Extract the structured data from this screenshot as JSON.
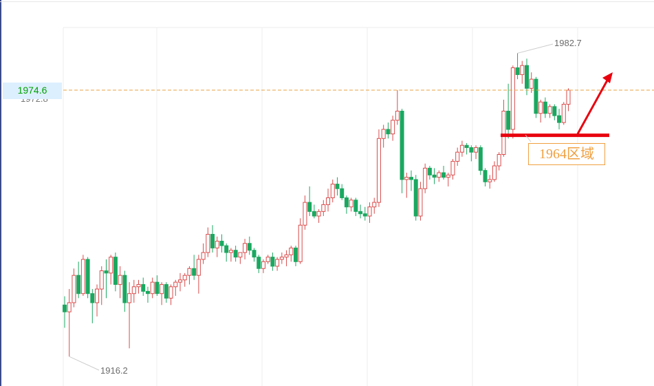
{
  "chart_data": {
    "type": "candlestick",
    "current_price": "1974.6",
    "ghost_price": "1972.8",
    "high_label": "1982.7",
    "low_label": "1916.2",
    "zone_label": "1964区域",
    "colors": {
      "up": "#d94a4a",
      "down": "#1aa860",
      "current_line": "#e8a040",
      "support": "#e8000e",
      "arrow": "#e8000e",
      "grid": "#ececec",
      "price_tag_bg": "#dcefff",
      "price_tag_text": "#00a000",
      "zone_text": "#f0a040"
    },
    "ohlc": [
      [
        1927.5,
        1929.4,
        1922.5,
        1926.0
      ],
      [
        1926.0,
        1931.0,
        1916.2,
        1928.0
      ],
      [
        1928.0,
        1935.5,
        1927.0,
        1934.0
      ],
      [
        1934.0,
        1937.0,
        1929.0,
        1930.0
      ],
      [
        1930.0,
        1938.5,
        1929.5,
        1937.5
      ],
      [
        1937.5,
        1938.0,
        1929.0,
        1930.0
      ],
      [
        1930.0,
        1931.0,
        1923.5,
        1928.0
      ],
      [
        1928.0,
        1932.0,
        1925.0,
        1931.0
      ],
      [
        1931.0,
        1936.0,
        1927.5,
        1935.0
      ],
      [
        1935.0,
        1937.5,
        1929.0,
        1934.5
      ],
      [
        1934.5,
        1938.5,
        1932.0,
        1938.0
      ],
      [
        1938.0,
        1939.0,
        1930.5,
        1932.0
      ],
      [
        1932.0,
        1936.0,
        1929.0,
        1934.0
      ],
      [
        1934.0,
        1935.0,
        1926.0,
        1928.0
      ],
      [
        1928.0,
        1932.5,
        1918.0,
        1930.0
      ],
      [
        1930.0,
        1933.0,
        1928.0,
        1931.5
      ],
      [
        1931.5,
        1933.0,
        1930.0,
        1932.0
      ],
      [
        1932.0,
        1933.5,
        1929.5,
        1930.5
      ],
      [
        1930.5,
        1931.5,
        1928.0,
        1930.0
      ],
      [
        1930.0,
        1933.5,
        1929.0,
        1932.5
      ],
      [
        1932.5,
        1934.0,
        1929.5,
        1930.0
      ],
      [
        1930.0,
        1932.5,
        1927.5,
        1932.0
      ],
      [
        1932.0,
        1932.5,
        1928.0,
        1929.0
      ],
      [
        1929.0,
        1932.0,
        1927.5,
        1931.5
      ],
      [
        1931.5,
        1933.0,
        1929.5,
        1932.5
      ],
      [
        1932.5,
        1934.5,
        1930.5,
        1933.0
      ],
      [
        1933.0,
        1934.5,
        1931.5,
        1934.0
      ],
      [
        1934.0,
        1936.0,
        1932.0,
        1935.5
      ],
      [
        1935.5,
        1938.5,
        1933.0,
        1934.0
      ],
      [
        1934.0,
        1938.5,
        1930.0,
        1937.5
      ],
      [
        1937.5,
        1941.0,
        1936.5,
        1939.0
      ],
      [
        1939.0,
        1944.5,
        1938.0,
        1943.0
      ],
      [
        1943.0,
        1945.0,
        1939.0,
        1940.0
      ],
      [
        1940.0,
        1942.5,
        1938.0,
        1941.5
      ],
      [
        1941.5,
        1943.0,
        1939.0,
        1940.5
      ],
      [
        1940.5,
        1941.0,
        1937.0,
        1939.0
      ],
      [
        1939.0,
        1940.0,
        1937.0,
        1939.5
      ],
      [
        1939.5,
        1940.5,
        1937.0,
        1938.0
      ],
      [
        1938.0,
        1939.0,
        1936.5,
        1939.0
      ],
      [
        1939.0,
        1942.0,
        1937.5,
        1941.0
      ],
      [
        1941.0,
        1942.5,
        1938.5,
        1939.5
      ],
      [
        1939.5,
        1940.0,
        1937.0,
        1938.0
      ],
      [
        1938.0,
        1938.5,
        1934.5,
        1935.5
      ],
      [
        1935.5,
        1937.5,
        1934.5,
        1937.0
      ],
      [
        1937.0,
        1938.5,
        1936.5,
        1938.0
      ],
      [
        1938.0,
        1939.0,
        1935.0,
        1936.0
      ],
      [
        1936.0,
        1938.0,
        1935.0,
        1937.5
      ],
      [
        1937.5,
        1939.0,
        1936.5,
        1938.0
      ],
      [
        1938.0,
        1939.5,
        1936.0,
        1938.5
      ],
      [
        1938.5,
        1940.5,
        1937.0,
        1940.0
      ],
      [
        1940.0,
        1940.5,
        1936.0,
        1937.0
      ],
      [
        1937.0,
        1946.5,
        1936.5,
        1945.0
      ],
      [
        1945.0,
        1951.5,
        1944.0,
        1950.0
      ],
      [
        1950.0,
        1953.5,
        1947.0,
        1948.0
      ],
      [
        1948.0,
        1949.5,
        1946.5,
        1947.0
      ],
      [
        1947.0,
        1948.5,
        1945.5,
        1948.0
      ],
      [
        1948.0,
        1950.5,
        1947.0,
        1949.5
      ],
      [
        1949.5,
        1953.0,
        1948.0,
        1951.0
      ],
      [
        1951.0,
        1955.0,
        1950.0,
        1954.0
      ],
      [
        1954.0,
        1955.5,
        1951.5,
        1953.0
      ],
      [
        1953.0,
        1954.0,
        1950.5,
        1951.0
      ],
      [
        1951.0,
        1951.5,
        1947.5,
        1949.0
      ],
      [
        1949.0,
        1951.0,
        1948.0,
        1950.5
      ],
      [
        1950.5,
        1951.0,
        1947.0,
        1948.0
      ],
      [
        1948.0,
        1949.5,
        1946.5,
        1947.5
      ],
      [
        1947.5,
        1949.0,
        1946.0,
        1947.0
      ],
      [
        1947.0,
        1950.0,
        1945.5,
        1949.0
      ],
      [
        1949.0,
        1951.0,
        1947.5,
        1950.0
      ],
      [
        1950.0,
        1966.0,
        1949.0,
        1964.0
      ],
      [
        1964.0,
        1967.0,
        1962.0,
        1966.0
      ],
      [
        1966.0,
        1967.5,
        1964.0,
        1965.0
      ],
      [
        1965.0,
        1969.0,
        1963.5,
        1968.0
      ],
      [
        1968.0,
        1974.6,
        1967.0,
        1970.0
      ],
      [
        1970.0,
        1970.5,
        1952.0,
        1955.0
      ],
      [
        1955.0,
        1956.5,
        1951.0,
        1955.5
      ],
      [
        1955.5,
        1957.0,
        1952.5,
        1955.0
      ],
      [
        1955.0,
        1956.0,
        1946.0,
        1947.0
      ],
      [
        1947.0,
        1954.5,
        1946.0,
        1953.0
      ],
      [
        1953.0,
        1958.5,
        1952.0,
        1957.5
      ],
      [
        1957.5,
        1958.0,
        1955.0,
        1956.0
      ],
      [
        1956.0,
        1957.5,
        1954.0,
        1955.5
      ],
      [
        1955.5,
        1957.0,
        1954.5,
        1956.5
      ],
      [
        1956.5,
        1958.0,
        1955.0,
        1955.5
      ],
      [
        1955.5,
        1956.5,
        1953.5,
        1956.0
      ],
      [
        1956.0,
        1959.5,
        1955.0,
        1959.0
      ],
      [
        1959.0,
        1962.0,
        1958.0,
        1961.0
      ],
      [
        1961.0,
        1963.5,
        1960.0,
        1962.5
      ],
      [
        1962.5,
        1963.0,
        1960.5,
        1962.0
      ],
      [
        1962.0,
        1962.5,
        1959.0,
        1961.0
      ],
      [
        1961.0,
        1962.5,
        1959.5,
        1962.0
      ],
      [
        1962.0,
        1962.5,
        1956.0,
        1957.0
      ],
      [
        1957.0,
        1957.5,
        1953.5,
        1954.5
      ],
      [
        1954.5,
        1956.0,
        1953.0,
        1955.0
      ],
      [
        1955.0,
        1959.0,
        1954.5,
        1958.0
      ],
      [
        1958.0,
        1961.0,
        1957.0,
        1960.5
      ],
      [
        1960.5,
        1972.5,
        1960.0,
        1970.0
      ],
      [
        1970.0,
        1976.0,
        1964.0,
        1966.0
      ],
      [
        1966.0,
        1980.0,
        1964.0,
        1979.5
      ],
      [
        1979.5,
        1982.7,
        1977.0,
        1978.0
      ],
      [
        1978.0,
        1981.0,
        1976.0,
        1980.0
      ],
      [
        1980.0,
        1981.5,
        1973.5,
        1975.0
      ],
      [
        1975.0,
        1978.5,
        1974.0,
        1977.0
      ],
      [
        1977.0,
        1977.5,
        1968.5,
        1969.5
      ],
      [
        1969.5,
        1972.5,
        1967.5,
        1972.0
      ],
      [
        1972.0,
        1973.0,
        1968.5,
        1969.5
      ],
      [
        1969.5,
        1971.5,
        1968.5,
        1971.0
      ],
      [
        1971.0,
        1971.5,
        1968.0,
        1969.0
      ],
      [
        1969.0,
        1970.5,
        1966.0,
        1967.5
      ],
      [
        1967.5,
        1972.0,
        1967.0,
        1971.5
      ],
      [
        1971.5,
        1975.0,
        1970.0,
        1974.6
      ]
    ]
  }
}
